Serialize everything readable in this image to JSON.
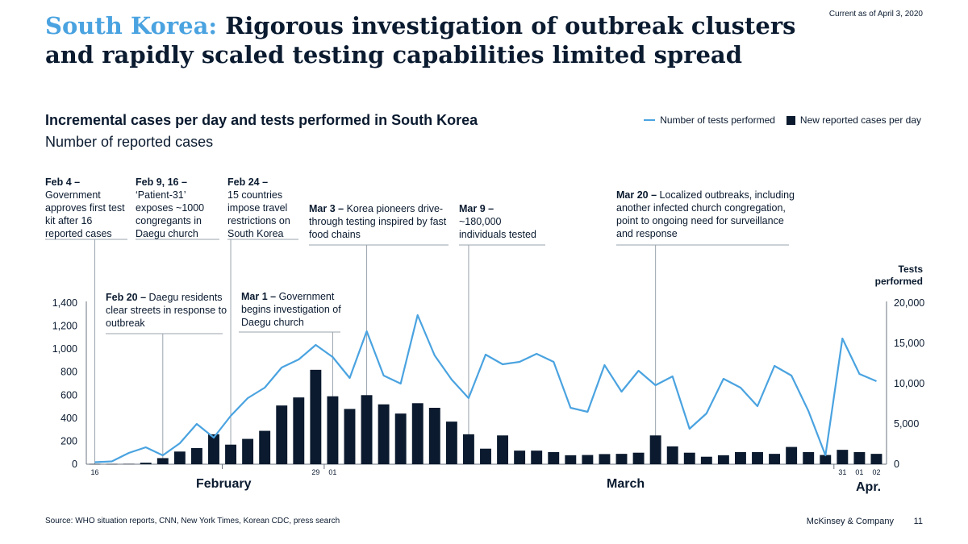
{
  "header": {
    "as_of": "Current as of April 3, 2020",
    "title_accent": "South Korea:",
    "title_rest": " Rigorous investigation of outbreak clusters and rapidly scaled testing capabilities limited spread"
  },
  "chart_data": {
    "type": "bar+line",
    "title": "Incremental cases per day and tests performed in South Korea",
    "subtitle": "Number of reported cases",
    "y_left": {
      "ticks": [
        "0",
        "200",
        "400",
        "600",
        "800",
        "1,000",
        "1,200",
        "1,400"
      ],
      "lim": [
        0,
        1400
      ]
    },
    "y_right": {
      "label": "Tests performed",
      "ticks": [
        "0",
        "5,000",
        "10,000",
        "15,000",
        "20,000"
      ],
      "lim": [
        0,
        20000
      ]
    },
    "x_tick_labels": [
      {
        "index": 0,
        "label": "16"
      },
      {
        "index": 13,
        "label": "29"
      },
      {
        "index": 14,
        "label": "01"
      },
      {
        "index": 44,
        "label": "31"
      },
      {
        "index": 45,
        "label": "01"
      },
      {
        "index": 46,
        "label": "02"
      }
    ],
    "month_labels": [
      "February",
      "March",
      "Apr."
    ],
    "series": [
      {
        "name": "New reported cases per day",
        "kind": "bar",
        "color": "#0b1a2e",
        "values": [
          2,
          2,
          3,
          13,
          53,
          110,
          140,
          260,
          170,
          220,
          290,
          510,
          580,
          820,
          590,
          480,
          600,
          520,
          440,
          530,
          490,
          370,
          260,
          135,
          250,
          118,
          118,
          105,
          78,
          80,
          88,
          90,
          100,
          250,
          155,
          100,
          65,
          78,
          105,
          105,
          90,
          150,
          105,
          80,
          125,
          105,
          90
        ]
      },
      {
        "name": "Number of tests performed",
        "kind": "line",
        "color": "#4aa3e0",
        "values": [
          250,
          350,
          1400,
          2100,
          1100,
          2600,
          5000,
          3300,
          6000,
          8200,
          9500,
          12000,
          13000,
          14800,
          13300,
          10700,
          16500,
          11000,
          10000,
          18500,
          13500,
          10500,
          8200,
          13600,
          12400,
          12700,
          13700,
          12700,
          7000,
          6500,
          12300,
          9000,
          11600,
          9800,
          10900,
          4400,
          6300,
          10600,
          9500,
          7200,
          12200,
          11000,
          6600,
          1100,
          15600,
          11200,
          10300
        ]
      }
    ],
    "annotations": [
      {
        "title": "Feb 4 –",
        "body": "Government approves first test kit after 16 reported cases",
        "at_index": 0
      },
      {
        "title": "Feb 9, 16 –",
        "body": "‘Patient-31’ exposes ~1000 congregants in Daegu church",
        "at_index": 4
      },
      {
        "title": "Feb 24 –",
        "body": "15 countries impose travel restrictions on South Korea",
        "at_index": 8
      },
      {
        "title": "Feb 20 –",
        "body": "Daegu residents clear streets in response to outbreak",
        "at_index": 4
      },
      {
        "title": "Mar 1 –",
        "body": "Government begins investigation of Daegu church",
        "at_index": 14
      },
      {
        "title": "Mar 3 –",
        "body": "Korea pioneers drive-through testing inspired by fast food chains",
        "at_index": 16
      },
      {
        "title": "Mar 9 –",
        "body": "~180,000 individuals tested",
        "at_index": 22
      },
      {
        "title": "Mar 20 –",
        "body": "Localized outbreaks, including another infected church congregation, point to ongoing need for surveillance and response",
        "at_index": 33
      }
    ]
  },
  "legend": {
    "tests_label": "Number of tests performed",
    "cases_label": "New reported cases per day"
  },
  "footer": {
    "source": "Source: WHO situation reports, CNN, New York Times, Korean CDC, press search",
    "brand": "McKinsey & Company",
    "page": "11"
  }
}
